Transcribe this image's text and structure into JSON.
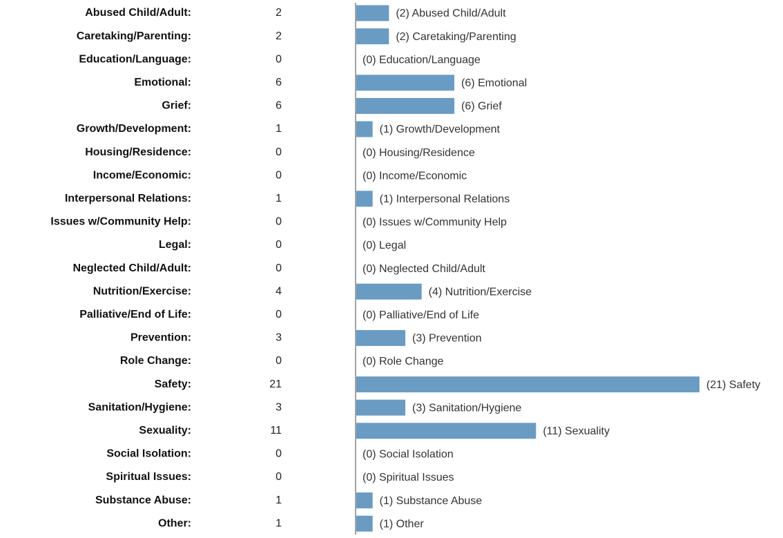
{
  "chart_data": {
    "type": "bar",
    "orientation": "horizontal",
    "color": "#6a9bc3",
    "categories": [
      "Abused Child/Adult:",
      "Caretaking/Parenting:",
      "Education/Language:",
      "Emotional:",
      "Grief:",
      "Growth/Development:",
      "Housing/Residence:",
      "Income/Economic:",
      "Interpersonal Relations:",
      "Issues w/Community Help:",
      "Legal:",
      "Neglected Child/Adult:",
      "Nutrition/Exercise:",
      "Palliative/End of Life:",
      "Prevention:",
      "Role Change:",
      "Safety:",
      "Sanitation/Hygiene:",
      "Sexuality:",
      "Social Isolation:",
      "Spiritual Issues:",
      "Substance Abuse:",
      "Other:"
    ],
    "values": [
      2,
      2,
      0,
      6,
      6,
      1,
      0,
      0,
      1,
      0,
      0,
      0,
      4,
      0,
      3,
      0,
      21,
      3,
      11,
      0,
      0,
      1,
      1
    ],
    "value_labels": [
      "(2) Abused Child/Adult",
      "(2) Caretaking/Parenting",
      "(0) Education/Language",
      "(6) Emotional",
      "(6) Grief",
      "(1) Growth/Development",
      "(0) Housing/Residence",
      "(0) Income/Economic",
      "(1) Interpersonal Relations",
      "(0) Issues w/Community Help",
      "(0) Legal",
      "(0) Neglected Child/Adult",
      "(4) Nutrition/Exercise",
      "(0) Palliative/End of Life",
      "(3) Prevention",
      "(0) Role Change",
      "(21) Safety",
      "(3) Sanitation/Hygiene",
      "(11) Sexuality",
      "(0) Social Isolation",
      "(0) Spiritual Issues",
      "(1) Substance Abuse",
      "(1) Other"
    ],
    "xlim": [
      0,
      21
    ]
  }
}
